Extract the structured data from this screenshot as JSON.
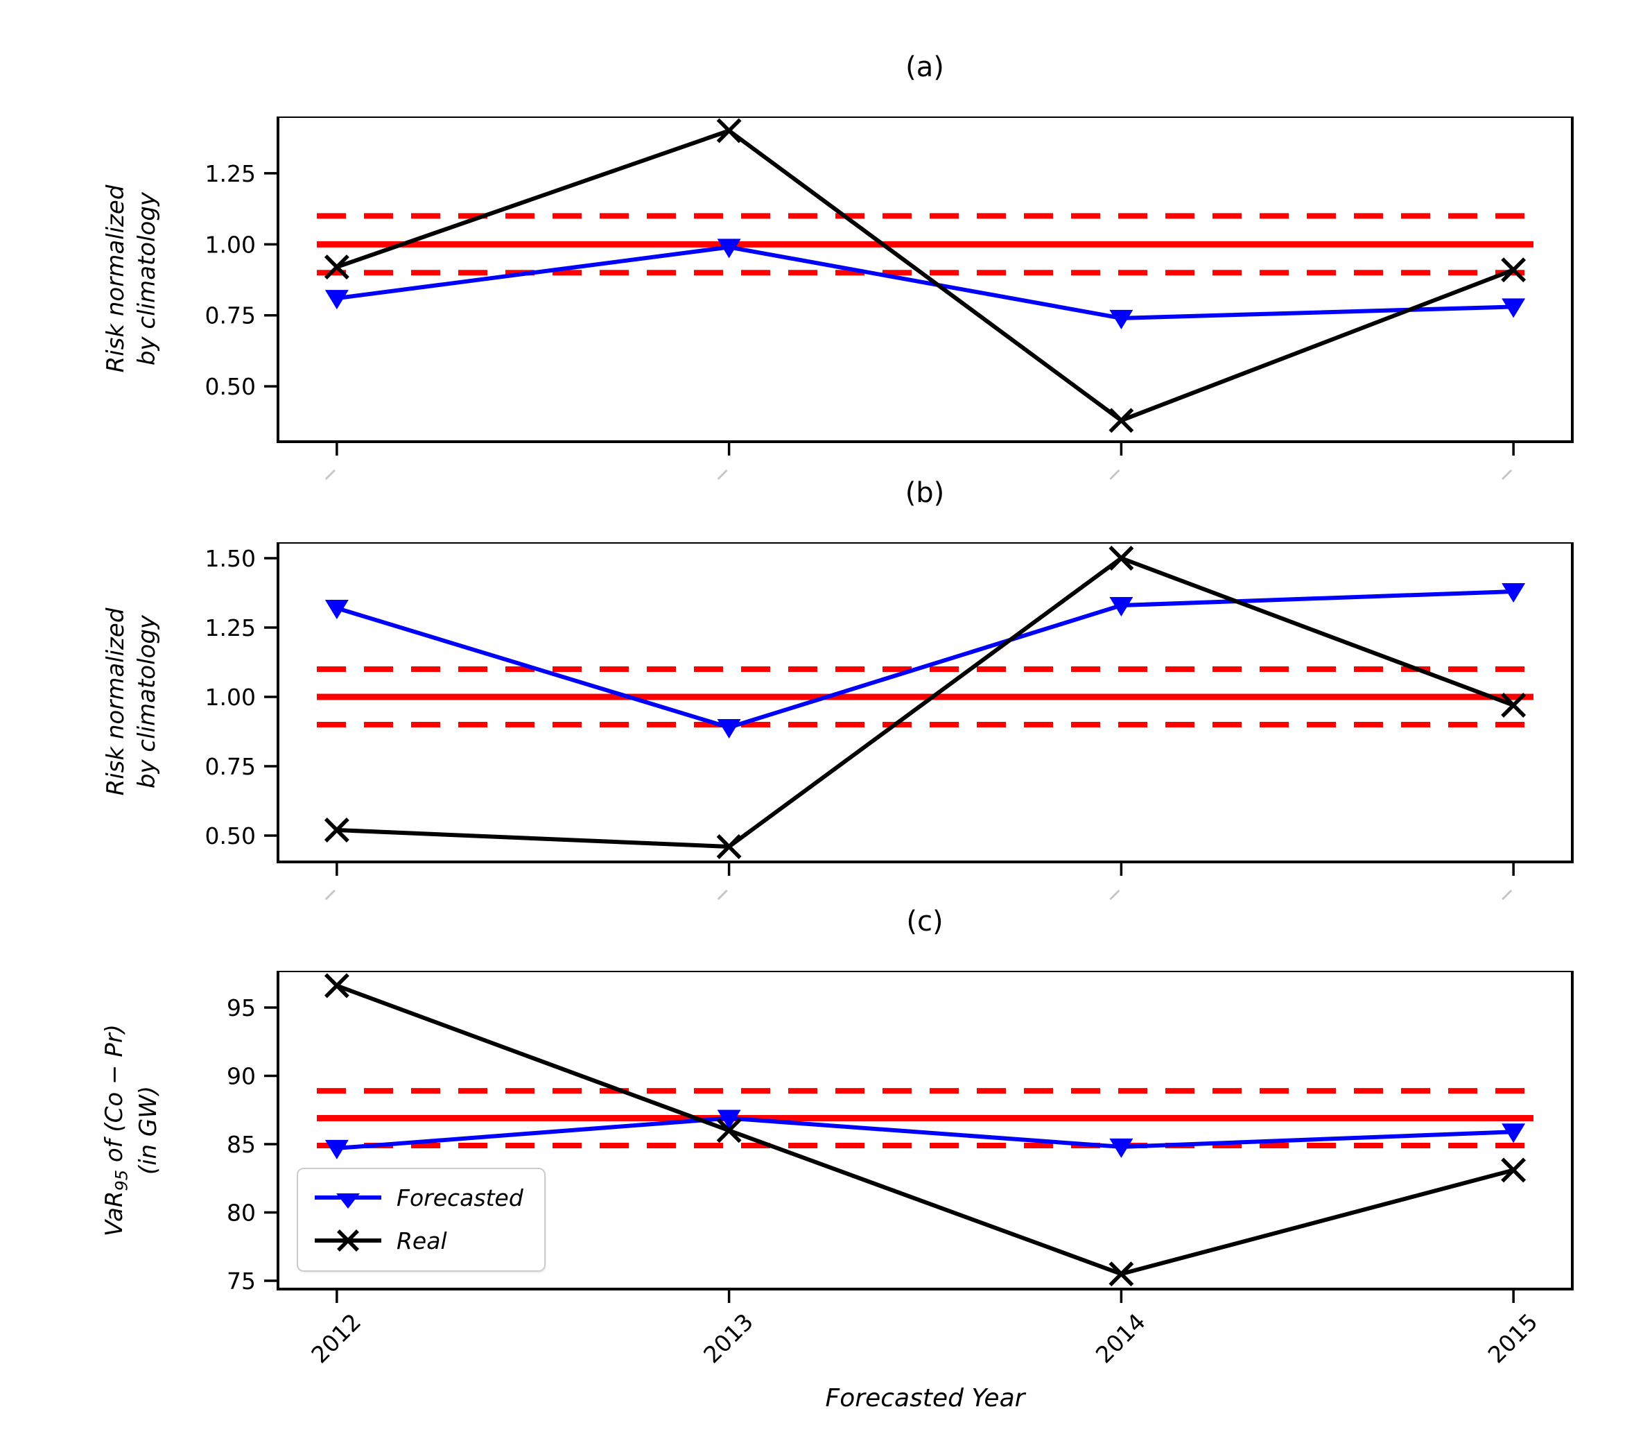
{
  "xlabel": "Forecasted Year",
  "x_tick_labels": [
    "2012",
    "2013",
    "2014",
    "2015"
  ],
  "legend": {
    "position": "lower left",
    "items": [
      {
        "label": "Forecasted",
        "color": "#0000ff",
        "marker": "triangle-down"
      },
      {
        "label": "Real",
        "color": "#000000",
        "marker": "x"
      }
    ]
  },
  "chart_data": [
    {
      "type": "line",
      "title": "(a)",
      "ylabel": "Risk normalized by climatology",
      "ylabel_lines": [
        "Risk normalized",
        "by climatology"
      ],
      "x": [
        2012,
        2013,
        2014,
        2015
      ],
      "xlim": [
        2011.85,
        2015.15
      ],
      "ylim": [
        0.305,
        1.45
      ],
      "ytick_values": [
        1.25,
        1.0,
        0.75,
        0.5
      ],
      "ytick_labels": [
        "1.25",
        "1.00",
        "0.75",
        "0.50"
      ],
      "grid": false,
      "x_tick_labels_visible": false,
      "ref_lines": {
        "color": "#ff0000",
        "solid": 1.0,
        "dashed": [
          1.1,
          0.9
        ]
      },
      "series": [
        {
          "name": "Forecasted",
          "color": "#0000ff",
          "marker": "triangle-down",
          "values": [
            0.81,
            0.99,
            0.74,
            0.78
          ]
        },
        {
          "name": "Real",
          "color": "#000000",
          "marker": "x",
          "values": [
            0.92,
            1.4,
            0.38,
            0.91
          ]
        }
      ]
    },
    {
      "type": "line",
      "title": "(b)",
      "ylabel": "Risk normalized by climatology",
      "ylabel_lines": [
        "Risk normalized",
        "by climatology"
      ],
      "x": [
        2012,
        2013,
        2014,
        2015
      ],
      "xlim": [
        2011.85,
        2015.15
      ],
      "ylim": [
        0.405,
        1.5575
      ],
      "ytick_values": [
        1.5,
        1.25,
        1.0,
        0.75,
        0.5
      ],
      "ytick_labels": [
        "1.50",
        "1.25",
        "1.00",
        "0.75",
        "0.50"
      ],
      "grid": false,
      "x_tick_labels_visible": false,
      "ref_lines": {
        "color": "#ff0000",
        "solid": 1.0,
        "dashed": [
          1.1,
          0.9
        ]
      },
      "series": [
        {
          "name": "Forecasted",
          "color": "#0000ff",
          "marker": "triangle-down",
          "values": [
            1.32,
            0.89,
            1.33,
            1.38
          ]
        },
        {
          "name": "Real",
          "color": "#000000",
          "marker": "x",
          "values": [
            0.52,
            0.46,
            1.5,
            0.97
          ]
        }
      ]
    },
    {
      "type": "line",
      "title": "(c)",
      "ylabel": "VaR95 of (Co − Pr) (in GW)",
      "ylabel_parts": {
        "prefix": "VaR",
        "sub": "95",
        "suffix": " of (Co − Pr)",
        "line2": "(in GW)"
      },
      "x": [
        2012,
        2013,
        2014,
        2015
      ],
      "xlim": [
        2011.85,
        2015.15
      ],
      "ylim": [
        74.39,
        97.69
      ],
      "ytick_values": [
        95,
        90,
        85,
        80,
        75
      ],
      "ytick_labels": [
        "95",
        "90",
        "85",
        "80",
        "75"
      ],
      "grid": false,
      "x_tick_labels_visible": true,
      "ref_lines": {
        "color": "#ff0000",
        "solid": 86.9,
        "dashed": [
          88.9,
          84.9
        ]
      },
      "series": [
        {
          "name": "Forecasted",
          "color": "#0000ff",
          "marker": "triangle-down",
          "values": [
            84.7,
            86.9,
            84.8,
            85.9
          ]
        },
        {
          "name": "Real",
          "color": "#000000",
          "marker": "x",
          "values": [
            96.6,
            86.0,
            75.5,
            83.1
          ]
        }
      ]
    }
  ]
}
